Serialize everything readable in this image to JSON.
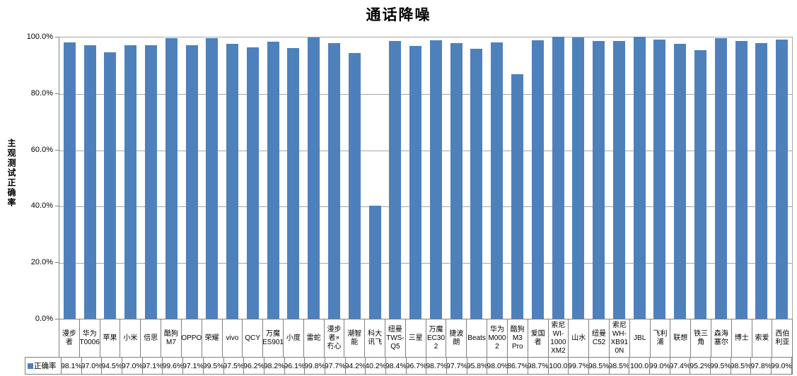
{
  "chart": {
    "title": "通话降噪",
    "y_axis": {
      "label": "主观测试正确率",
      "ticks": [
        {
          "value": 100,
          "label": "100.0%"
        },
        {
          "value": 80,
          "label": "80.0%"
        },
        {
          "value": 60,
          "label": "60.0%"
        },
        {
          "value": 40,
          "label": "40.0%"
        },
        {
          "value": 20,
          "label": "20.0%"
        },
        {
          "value": 0,
          "label": "0.0%"
        }
      ]
    },
    "legend": {
      "series_label": "正确率"
    }
  },
  "chart_data": {
    "type": "bar",
    "title": "通话降噪",
    "xlabel": "",
    "ylabel": "主观测试正确率",
    "ylim": [
      0,
      100
    ],
    "grid": true,
    "gridline_values": [
      20,
      40,
      60,
      80
    ],
    "legend_position": "bottom-data-table",
    "categories": [
      "漫步者",
      "华为T0006",
      "苹果",
      "小米",
      "倍思",
      "酷狗M7",
      "OPPO",
      "荣耀",
      "vivo",
      "QCY",
      "万魔ES901",
      "小度",
      "雷蛇",
      "漫步者×冇心",
      "潮智能",
      "科大讯飞",
      "纽曼TWS-Q5",
      "三星",
      "万魔EC302",
      "捷波朗",
      "Beats",
      "华为M0002",
      "酷狗M3 Pro",
      "爱国者",
      "索尼WI-1000XM2",
      "山水",
      "纽曼C52",
      "索尼WH-XB910N",
      "JBL",
      "飞利浦",
      "联想",
      "铁三角",
      "森海塞尔",
      "博士",
      "索爱",
      "西伯利亚"
    ],
    "category_label_lines": [
      "漫步\n者",
      "华为\nT0006",
      "苹果",
      "小米",
      "倍思",
      "酷狗\nM7",
      "OPPO",
      "荣耀",
      "vivo",
      "QCY",
      "万魔\nES901",
      "小度",
      "雷蛇",
      "漫步\n者×\n冇心",
      "潮智\n能",
      "科大\n讯飞",
      "纽曼\nTWS-\nQ5",
      "三星",
      "万魔\nEC30\n2",
      "捷波\n朗",
      "Beats",
      "华为\nM000\n2",
      "酷狗\nM3\nPro",
      "爱国\n者",
      "索尼\nWI-\n1000\nXM2",
      "山水",
      "纽曼\nC52",
      "索尼\nWH-\nXB91\n0N",
      "JBL",
      "飞利\n浦",
      "联想",
      "铁三\n角",
      "森海\n塞尔",
      "博士",
      "索爱",
      "西伯\n利亚"
    ],
    "series": [
      {
        "name": "正确率",
        "values": [
          98.1,
          97.0,
          94.5,
          97.0,
          97.1,
          99.6,
          97.1,
          99.5,
          97.5,
          96.2,
          98.2,
          96.1,
          99.8,
          97.7,
          94.2,
          40.2,
          98.4,
          96.7,
          98.7,
          97.7,
          95.8,
          98.0,
          86.7,
          98.7,
          100.0,
          99.7,
          98.5,
          98.5,
          100.0,
          99.0,
          97.4,
          95.2,
          99.5,
          98.5,
          97.8,
          99.0
        ],
        "value_labels_displayed": [
          "98.1%",
          "97.0%",
          "94.5%",
          "97.0%",
          "97.1%",
          "99.6%",
          "97.1%",
          "99.5%",
          "97.5%",
          "96.2%",
          "98.2%",
          "96.1%",
          "99.8%",
          "97.7%",
          "94.2%",
          "40.2%",
          "98.4%",
          "96.7%",
          "98.7%",
          "97.7%",
          "95.8%",
          "98.0%",
          "86.7%",
          "98.7%",
          "100.0",
          "99.7%",
          "98.5%",
          "98.5%",
          "100.0",
          "99.0%",
          "97.4%",
          "95.2%",
          "99.5%",
          "98.5%",
          "97.8%",
          "99.0%"
        ]
      }
    ]
  },
  "colors": {
    "bar": "#4E81BC",
    "gridline": "#A6A6A6",
    "table_border": "#808080",
    "plot_border": "#A6A6A6"
  }
}
